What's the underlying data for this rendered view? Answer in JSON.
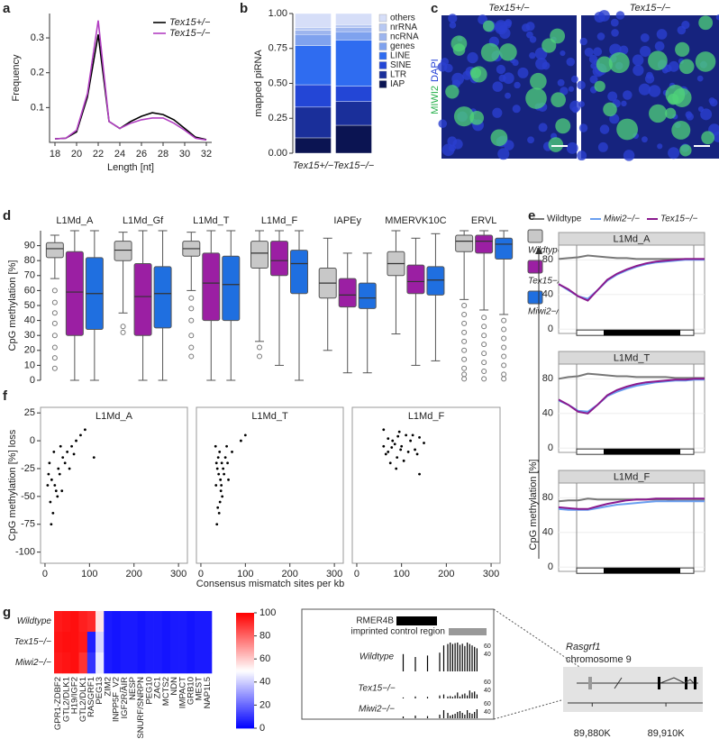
{
  "panel_letters": [
    "a",
    "b",
    "c",
    "d",
    "e",
    "f",
    "g"
  ],
  "chart_data": [
    {
      "type": "line",
      "xlabel": "Length [nt]",
      "ylabel": "Frequency",
      "x": [
        18,
        19,
        20,
        21,
        22,
        23,
        24,
        25,
        26,
        27,
        28,
        29,
        30,
        31,
        32
      ],
      "xlim": [
        17.5,
        32.5
      ],
      "xticks": [
        18,
        20,
        22,
        24,
        26,
        28,
        30,
        32
      ],
      "ylim": [
        0,
        0.37
      ],
      "yticks": [
        0.1,
        0.2,
        0.3
      ],
      "series": [
        {
          "name": "Tex15+/−",
          "color": "#000000",
          "values": [
            0.01,
            0.012,
            0.03,
            0.13,
            0.31,
            0.06,
            0.04,
            0.06,
            0.075,
            0.085,
            0.08,
            0.065,
            0.04,
            0.015,
            0.008
          ]
        },
        {
          "name": "Tex15−/−",
          "color": "#b23fc2",
          "values": [
            0.01,
            0.012,
            0.035,
            0.14,
            0.35,
            0.06,
            0.04,
            0.055,
            0.065,
            0.07,
            0.07,
            0.055,
            0.035,
            0.012,
            0.007
          ]
        }
      ]
    },
    {
      "type": "stacked-bar",
      "ylabel": "mapped piRNA",
      "categories": [
        "Tex15+/−",
        "Tex15−/−"
      ],
      "ylim": [
        0,
        1
      ],
      "yticks": [
        {
          "value": 0,
          "label": "0.00"
        },
        {
          "value": 0.25,
          "label": "0.25"
        },
        {
          "value": 0.5,
          "label": "0.50"
        },
        {
          "value": 0.75,
          "label": "0.75"
        },
        {
          "value": 1,
          "label": "1.00"
        }
      ],
      "series": [
        {
          "name": "IAP",
          "color": "#0b1452",
          "values": [
            0.11,
            0.2
          ]
        },
        {
          "name": "LTR",
          "color": "#1a2f9a",
          "values": [
            0.22,
            0.17
          ]
        },
        {
          "name": "SINE",
          "color": "#2346d6",
          "values": [
            0.16,
            0.11
          ]
        },
        {
          "name": "LINE",
          "color": "#2f6cf0",
          "values": [
            0.28,
            0.33
          ]
        },
        {
          "name": "genes",
          "color": "#7fa2ee",
          "values": [
            0.08,
            0.06
          ]
        },
        {
          "name": "ncRNA",
          "color": "#9db5ee",
          "values": [
            0.03,
            0.03
          ]
        },
        {
          "name": "nrRNA",
          "color": "#b7c8f2",
          "values": [
            0.02,
            0.02
          ]
        },
        {
          "name": "others",
          "color": "#d6def8",
          "values": [
            0.1,
            0.08
          ]
        }
      ]
    },
    {
      "type": "box",
      "ylabel": "CpG methylation [%]",
      "groups": [
        "L1Md_A",
        "L1Md_Gf",
        "L1Md_T",
        "L1Md_F",
        "IAPEy",
        "MMERVK10C",
        "ERVL"
      ],
      "ylim": [
        0,
        100
      ],
      "yticks": [
        0,
        10,
        20,
        30,
        40,
        50,
        60,
        70,
        80,
        90
      ],
      "series": [
        {
          "name": "Wildtype",
          "color": "#c8c8c8",
          "boxes": [
            {
              "low": 68,
              "q1": 82,
              "median": 88,
              "q3": 92,
              "high": 97,
              "outliers": [
                60,
                52,
                45,
                38,
                30,
                22,
                15,
                8
              ]
            },
            {
              "low": 45,
              "q1": 80,
              "median": 87,
              "q3": 93,
              "high": 99,
              "outliers": [
                36,
                32
              ]
            },
            {
              "low": 60,
              "q1": 83,
              "median": 88,
              "q3": 93,
              "high": 99,
              "outliers": [
                55,
                48,
                40,
                30,
                22,
                16
              ]
            },
            {
              "low": 26,
              "q1": 75,
              "median": 85,
              "q3": 93,
              "high": 100,
              "outliers": [
                22,
                16
              ]
            },
            {
              "low": 20,
              "q1": 55,
              "median": 65,
              "q3": 75,
              "high": 95,
              "outliers": []
            },
            {
              "low": 31,
              "q1": 70,
              "median": 78,
              "q3": 86,
              "high": 100,
              "outliers": []
            },
            {
              "low": 54,
              "q1": 86,
              "median": 93,
              "q3": 97,
              "high": 100,
              "outliers": [
                50,
                44,
                38,
                32,
                26,
                20,
                14,
                8,
                4,
                1
              ]
            }
          ]
        },
        {
          "name": "Tex15−/−",
          "color": "#9b1fa3",
          "boxes": [
            {
              "low": 0,
              "q1": 30,
              "median": 59,
              "q3": 86,
              "high": 100,
              "outliers": []
            },
            {
              "low": 0,
              "q1": 30,
              "median": 56,
              "q3": 78,
              "high": 100,
              "outliers": []
            },
            {
              "low": 0,
              "q1": 40,
              "median": 65,
              "q3": 85,
              "high": 100,
              "outliers": []
            },
            {
              "low": 10,
              "q1": 70,
              "median": 80,
              "q3": 93,
              "high": 100,
              "outliers": []
            },
            {
              "low": 5,
              "q1": 49,
              "median": 57,
              "q3": 68,
              "high": 85,
              "outliers": []
            },
            {
              "low": 10,
              "q1": 58,
              "median": 66,
              "q3": 77,
              "high": 95,
              "outliers": []
            },
            {
              "low": 47,
              "q1": 85,
              "median": 93,
              "q3": 97,
              "high": 100,
              "outliers": [
                42,
                36,
                30,
                24,
                18,
                12,
                6,
                1
              ]
            }
          ]
        },
        {
          "name": "Miwi2−/−",
          "color": "#1f6fe0",
          "boxes": [
            {
              "low": 0,
              "q1": 34,
              "median": 58,
              "q3": 82,
              "high": 100,
              "outliers": []
            },
            {
              "low": 0,
              "q1": 35,
              "median": 58,
              "q3": 76,
              "high": 100,
              "outliers": []
            },
            {
              "low": 0,
              "q1": 40,
              "median": 64,
              "q3": 83,
              "high": 100,
              "outliers": []
            },
            {
              "low": 0,
              "q1": 58,
              "median": 78,
              "q3": 87,
              "high": 100,
              "outliers": []
            },
            {
              "low": 5,
              "q1": 48,
              "median": 55,
              "q3": 65,
              "high": 85,
              "outliers": []
            },
            {
              "low": 13,
              "q1": 57,
              "median": 67,
              "q3": 76,
              "high": 98,
              "outliers": []
            },
            {
              "low": 44,
              "q1": 81,
              "median": 91,
              "q3": 95,
              "high": 100,
              "outliers": [
                40,
                34,
                28,
                22,
                16,
                10,
                4,
                1
              ]
            }
          ]
        }
      ]
    },
    {
      "type": "line",
      "ylabel": "CpG methylation [%]",
      "ylim": [
        -5,
        97
      ],
      "yticks": [
        0,
        40,
        80
      ],
      "series": [
        {
          "name": "Wildtype",
          "color": "#777777"
        },
        {
          "name": "Miwi2−/−",
          "color": "#6a9ff0"
        },
        {
          "name": "Tex15−/−",
          "color": "#8a1a8e"
        }
      ],
      "panels": [
        {
          "title": "L1Md_A",
          "values": [
            [
              81,
              82,
              83,
              85,
              84,
              83,
              82,
              82,
              81,
              81,
              81,
              81,
              81,
              81,
              81,
              81
            ],
            [
              52,
              45,
              38,
              35,
              45,
              56,
              63,
              68,
              72,
              75,
              77,
              78,
              79,
              80,
              80,
              80
            ],
            [
              52,
              46,
              38,
              33,
              45,
              57,
              64,
              69,
              73,
              76,
              78,
              79,
              80,
              81,
              81,
              81
            ]
          ]
        },
        {
          "title": "L1Md_T",
          "values": [
            [
              80,
              82,
              83,
              86,
              85,
              84,
              83,
              83,
              82,
              82,
              82,
              82,
              81,
              81,
              81,
              81
            ],
            [
              55,
              50,
              43,
              42,
              50,
              60,
              65,
              69,
              72,
              74,
              76,
              77,
              78,
              78,
              79,
              79
            ],
            [
              56,
              50,
              42,
              40,
              50,
              61,
              67,
              71,
              74,
              76,
              77,
              78,
              79,
              79,
              80,
              80
            ]
          ]
        },
        {
          "title": "L1Md_F",
          "values": [
            [
              76,
              77,
              77,
              79,
              78,
              78,
              78,
              78,
              78,
              78,
              78,
              78,
              77,
              77,
              77,
              77
            ],
            [
              67,
              66,
              66,
              66,
              68,
              70,
              72,
              73,
              74,
              75,
              76,
              76,
              76,
              76,
              76,
              76
            ],
            [
              69,
              68,
              67,
              67,
              70,
              73,
              75,
              77,
              78,
              78,
              79,
              79,
              79,
              79,
              79,
              79
            ]
          ]
        }
      ]
    },
    {
      "type": "scatter",
      "xlabel": "Consensus mismatch sites per kb",
      "ylabel": "CpG methylation [%] loss",
      "color": "#000000",
      "xlim": [
        -10,
        320
      ],
      "xticks": [
        0,
        100,
        200,
        300
      ],
      "ylim": [
        -110,
        30
      ],
      "yticks": [
        25,
        0,
        -25,
        -50,
        -75,
        -100
      ],
      "panels": [
        {
          "title": "L1Md_A",
          "x": [
            10,
            15,
            20,
            25,
            12,
            8,
            30,
            35,
            40,
            18,
            22,
            28,
            45,
            50,
            60,
            70,
            80,
            90,
            14,
            33,
            55,
            110,
            6,
            38,
            65
          ],
          "values": [
            -20,
            -35,
            -10,
            -45,
            -55,
            -30,
            -25,
            -5,
            -15,
            -65,
            -40,
            -50,
            -20,
            -10,
            -5,
            0,
            5,
            10,
            -75,
            -30,
            -25,
            -15,
            -40,
            -45,
            -12
          ]
        },
        {
          "title": "L1Md_T",
          "x": [
            35,
            40,
            45,
            38,
            42,
            50,
            55,
            36,
            44,
            48,
            33,
            60,
            70,
            90,
            41,
            46,
            52,
            39,
            58,
            100,
            43,
            37,
            62,
            47,
            34
          ],
          "values": [
            -20,
            -30,
            -45,
            -60,
            -10,
            -25,
            -15,
            -75,
            -35,
            -50,
            -5,
            -20,
            -10,
            0,
            -65,
            -40,
            -30,
            -15,
            -5,
            5,
            -55,
            -25,
            -35,
            -20,
            -40
          ]
        },
        {
          "title": "L1Md_F",
          "x": [
            60,
            70,
            80,
            90,
            100,
            110,
            75,
            85,
            95,
            65,
            120,
            130,
            140,
            150,
            105,
            115,
            125,
            70,
            88,
            98,
            140,
            60,
            78,
            92,
            135
          ],
          "values": [
            -5,
            -10,
            0,
            -15,
            -5,
            5,
            -20,
            -3,
            8,
            -12,
            0,
            -8,
            3,
            -2,
            -18,
            -10,
            5,
            2,
            -25,
            -8,
            -30,
            10,
            -6,
            4,
            -12
          ]
        }
      ]
    },
    {
      "type": "heatmap",
      "rows": [
        "Wildtype",
        "Tex15−/−",
        "Miwi2−/−"
      ],
      "columns": [
        "GPR1-ZDBF2",
        "GTL2/DLK1",
        "H19/IGF2",
        "GTL2/DLK1",
        "RASGRF1",
        "PEG13",
        "ZIM2",
        "INPP5F_V2",
        "IGF2R/AIR",
        "NESP",
        "SNURF/SNRPN",
        "PEG10",
        "ZAC1",
        "MCTS2",
        "NDN",
        "IMPACT",
        "GRB10",
        "MEST",
        "NAP1L5"
      ],
      "values": [
        [
          95,
          96,
          97,
          94,
          92,
          55,
          5,
          4,
          5,
          5,
          4,
          5,
          5,
          4,
          5,
          5,
          4,
          5,
          5
        ],
        [
          96,
          97,
          97,
          95,
          6,
          42,
          5,
          4,
          5,
          5,
          4,
          5,
          5,
          4,
          5,
          5,
          4,
          5,
          5
        ],
        [
          95,
          96,
          97,
          90,
          10,
          46,
          5,
          4,
          5,
          5,
          4,
          5,
          5,
          4,
          5,
          5,
          4,
          5,
          5
        ]
      ],
      "zlim": [
        0,
        100
      ],
      "zticks": [
        0,
        20,
        40,
        60,
        80,
        100
      ]
    }
  ],
  "micrograph": {
    "titles": [
      "Tex15+/−",
      "Tex15−/−"
    ],
    "stains": [
      "MIWI2",
      "DAPI"
    ]
  },
  "browser": {
    "element": "RMER4B",
    "region": "imprinted control region",
    "xlim": [
      0,
      100
    ],
    "ylim": [
      0,
      100
    ],
    "x": [
      5,
      20,
      35,
      50,
      55,
      60,
      63,
      66,
      69,
      72,
      75,
      78,
      81,
      84,
      87,
      90,
      93,
      96
    ],
    "tracks": [
      {
        "name": "Wildtype",
        "scale": [
          60,
          40
        ],
        "values": [
          60,
          50,
          55,
          65,
          90,
          95,
          100,
          95,
          98,
          100,
          92,
          96,
          88,
          100,
          95,
          90,
          85,
          80
        ]
      },
      {
        "name": "Tex15−/−",
        "scale": [
          60,
          40
        ],
        "values": [
          5,
          10,
          8,
          15,
          20,
          10,
          12,
          8,
          15,
          30,
          10,
          20,
          25,
          15,
          40,
          30,
          35,
          20
        ]
      },
      {
        "name": "Miwi2−/−",
        "scale": [
          60,
          40
        ],
        "values": [
          10,
          15,
          12,
          20,
          45,
          30,
          15,
          20,
          25,
          35,
          40,
          30,
          20,
          45,
          30,
          25,
          35,
          50
        ]
      }
    ]
  },
  "locus": {
    "gene": "Rasgrf1",
    "chromosome": "chromosome 9",
    "xlim": [
      89870000,
      89925000
    ],
    "xticks": [
      {
        "value": 89880000,
        "label": "89,880K"
      },
      {
        "value": 89910000,
        "label": "89,910K"
      }
    ]
  }
}
